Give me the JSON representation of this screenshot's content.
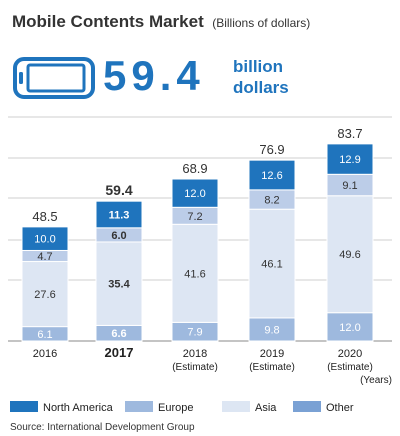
{
  "header": {
    "title": "Mobile Contents Market",
    "subtitle": "(Billions of dollars)",
    "highlight_value": "59.4",
    "highlight_unit_line1": "billion",
    "highlight_unit_line2": "dollars",
    "icon": "smartphone-icon"
  },
  "chart_data": {
    "type": "bar",
    "stacked": true,
    "categories": [
      "2016",
      "2017",
      "2018",
      "2019",
      "2020"
    ],
    "category_sublabels": [
      "",
      "",
      "(Estimate)",
      "(Estimate)",
      "(Estimate)"
    ],
    "highlight_category": "2017",
    "x_unit": "(Years)",
    "series": [
      {
        "name": "Other",
        "values": [
          6.1,
          6.6,
          7.9,
          9.8,
          12.0
        ],
        "labels": [
          "6.1",
          "6.6",
          "7.9",
          "9.8",
          "12.0"
        ],
        "color": "#9eb9de",
        "label_color": "#ffffff"
      },
      {
        "name": "Asia",
        "values": [
          27.6,
          35.4,
          41.6,
          46.1,
          49.6
        ],
        "labels": [
          "27.6",
          "35.4",
          "41.6",
          "46.1",
          "49.6"
        ],
        "color": "#dde6f3",
        "label_color": "#333333"
      },
      {
        "name": "Europe",
        "values": [
          4.7,
          6.0,
          7.2,
          8.2,
          9.1
        ],
        "labels": [
          "4.7",
          "6.0",
          "7.2",
          "8.2",
          "9.1"
        ],
        "color": "#bccde8",
        "label_color": "#333333"
      },
      {
        "name": "North America",
        "values": [
          10.0,
          11.3,
          12.0,
          12.6,
          12.9
        ],
        "labels": [
          "10.0",
          "11.3",
          "12.0",
          "12.6",
          "12.9"
        ],
        "color": "#1f74bd",
        "label_color": "#ffffff"
      }
    ],
    "totals": [
      "48.5",
      "59.4",
      "68.9",
      "76.9",
      "83.7"
    ],
    "legend": {
      "placement": "bottom",
      "items": [
        {
          "name": "North America",
          "color": "#1f74bd"
        },
        {
          "name": "Europe",
          "color": "#9eb9de"
        },
        {
          "name": "Asia",
          "color": "#dde6f3"
        },
        {
          "name": "Other",
          "color": "#7aa1d4"
        }
      ]
    },
    "ylim": [
      0,
      95
    ],
    "grid": true
  },
  "source": "Source: International Development Group"
}
